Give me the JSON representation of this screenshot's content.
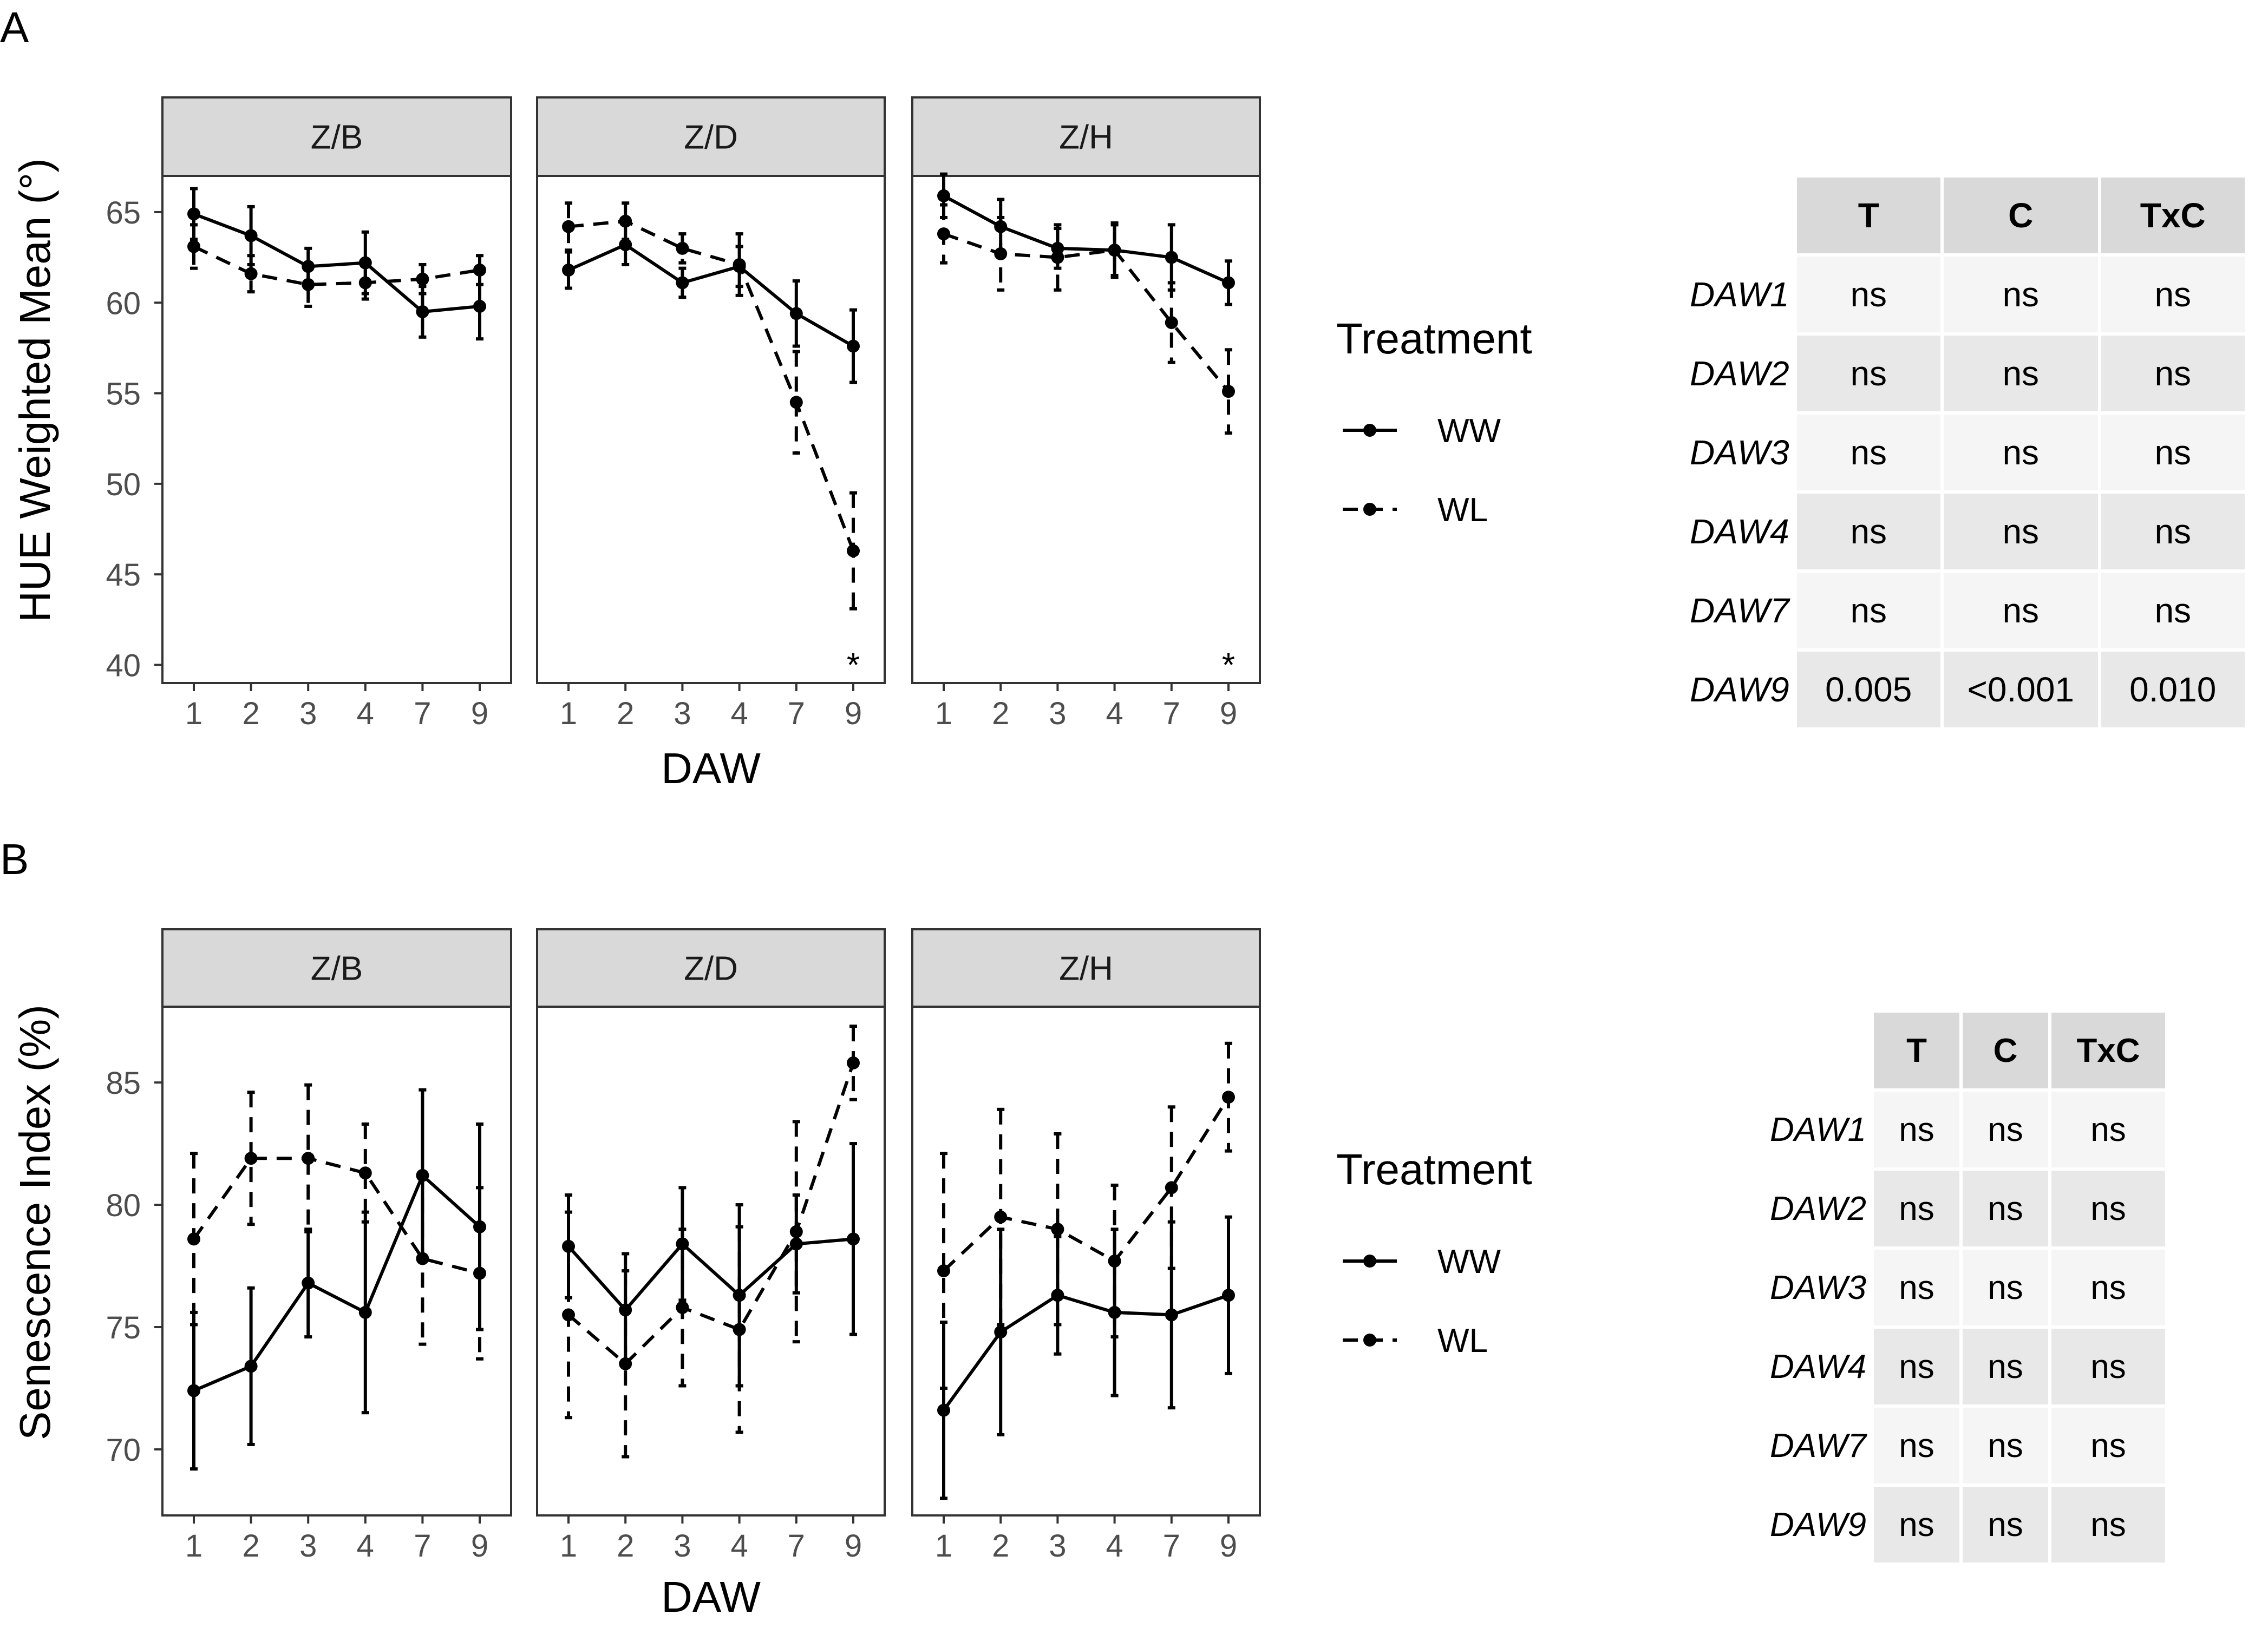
{
  "figure": {
    "panel_a_label": "A",
    "panel_b_label": "B"
  },
  "colors": {
    "strip": "#d9d9d9",
    "frame": "#333333",
    "tick": "#4d4d4d",
    "line": "#000000"
  },
  "chart_data": [
    {
      "type": "line",
      "id": "A",
      "ylabel": "HUE Weighted Mean (°)",
      "xlabel": "DAW",
      "categories": [
        "1",
        "2",
        "3",
        "4",
        "7",
        "9"
      ],
      "ylim": [
        39,
        67
      ],
      "yticks": [
        40,
        45,
        50,
        55,
        60,
        65
      ],
      "legend_title": "Treatment",
      "legend": [
        {
          "name": "WW",
          "dash": "solid"
        },
        {
          "name": "WL",
          "dash": "dashed"
        }
      ],
      "facets": [
        {
          "label": "Z/B",
          "series": [
            {
              "name": "WW",
              "values": [
                64.9,
                63.7,
                62.0,
                62.2,
                59.5,
                59.8
              ],
              "err": [
                1.4,
                1.6,
                1.0,
                1.7,
                1.4,
                1.8
              ]
            },
            {
              "name": "WL",
              "values": [
                63.1,
                61.6,
                61.0,
                61.1,
                61.3,
                61.8
              ],
              "err": [
                1.2,
                1.0,
                1.2,
                0.9,
                0.8,
                0.8
              ]
            }
          ],
          "annotations": []
        },
        {
          "label": "Z/D",
          "series": [
            {
              "name": "WW",
              "values": [
                61.8,
                63.2,
                61.1,
                62.0,
                59.4,
                57.6
              ],
              "err": [
                1.0,
                1.1,
                0.8,
                1.1,
                1.8,
                2.0
              ]
            },
            {
              "name": "WL",
              "values": [
                64.2,
                64.5,
                63.0,
                62.1,
                54.5,
                46.3
              ],
              "err": [
                1.3,
                1.0,
                0.8,
                1.7,
                2.8,
                3.2
              ]
            }
          ],
          "annotations": [
            {
              "x": "9",
              "text": "*"
            }
          ]
        },
        {
          "label": "Z/H",
          "series": [
            {
              "name": "WW",
              "values": [
                65.9,
                64.2,
                63.0,
                62.9,
                62.5,
                61.1
              ],
              "err": [
                1.2,
                1.5,
                1.1,
                1.5,
                1.8,
                1.2
              ]
            },
            {
              "name": "WL",
              "values": [
                63.8,
                62.7,
                62.5,
                62.9,
                58.9,
                55.1
              ],
              "err": [
                1.6,
                2.0,
                1.8,
                1.4,
                2.2,
                2.3
              ]
            }
          ],
          "annotations": [
            {
              "x": "9",
              "text": "*"
            }
          ]
        }
      ]
    },
    {
      "type": "line",
      "id": "B",
      "ylabel": "Senescence Index (%)",
      "xlabel": "DAW",
      "categories": [
        "1",
        "2",
        "3",
        "4",
        "7",
        "9"
      ],
      "ylim": [
        67.3,
        88.1
      ],
      "yticks": [
        70,
        75,
        80,
        85
      ],
      "legend_title": "Treatment",
      "legend": [
        {
          "name": "WW",
          "dash": "solid"
        },
        {
          "name": "WL",
          "dash": "dashed"
        }
      ],
      "facets": [
        {
          "label": "Z/B",
          "series": [
            {
              "name": "WW",
              "values": [
                72.4,
                73.4,
                76.8,
                75.6,
                81.2,
                79.1
              ],
              "err": [
                3.2,
                3.2,
                2.2,
                4.1,
                3.5,
                4.2
              ]
            },
            {
              "name": "WL",
              "values": [
                78.6,
                81.9,
                81.9,
                81.3,
                77.8,
                77.2
              ],
              "err": [
                3.5,
                2.7,
                3.0,
                2.0,
                3.5,
                3.5
              ]
            }
          ],
          "annotations": []
        },
        {
          "label": "Z/D",
          "series": [
            {
              "name": "WW",
              "values": [
                78.3,
                75.7,
                78.4,
                76.3,
                78.4,
                78.6
              ],
              "err": [
                2.1,
                2.3,
                2.3,
                3.7,
                2.0,
                3.9
              ]
            },
            {
              "name": "WL",
              "values": [
                75.5,
                73.5,
                75.8,
                74.9,
                78.9,
                85.8
              ],
              "err": [
                4.2,
                3.8,
                3.2,
                4.2,
                4.5,
                1.5
              ]
            }
          ],
          "annotations": []
        },
        {
          "label": "Z/H",
          "series": [
            {
              "name": "WW",
              "values": [
                71.6,
                74.8,
                76.3,
                75.6,
                75.5,
                76.3
              ],
              "err": [
                3.6,
                4.2,
                2.4,
                3.4,
                3.8,
                3.2
              ]
            },
            {
              "name": "WL",
              "values": [
                77.3,
                79.5,
                79.0,
                77.7,
                80.7,
                84.4
              ],
              "err": [
                4.8,
                4.4,
                3.9,
                3.1,
                3.3,
                2.2
              ]
            }
          ],
          "annotations": []
        }
      ]
    },
    {
      "type": "table",
      "id": "tableA",
      "columns": [
        "T",
        "C",
        "TxC"
      ],
      "rows": [
        {
          "label": "DAW1",
          "cells": [
            "ns",
            "ns",
            "ns"
          ]
        },
        {
          "label": "DAW2",
          "cells": [
            "ns",
            "ns",
            "ns"
          ]
        },
        {
          "label": "DAW3",
          "cells": [
            "ns",
            "ns",
            "ns"
          ]
        },
        {
          "label": "DAW4",
          "cells": [
            "ns",
            "ns",
            "ns"
          ]
        },
        {
          "label": "DAW7",
          "cells": [
            "ns",
            "ns",
            "ns"
          ]
        },
        {
          "label": "DAW9",
          "cells": [
            "0.005",
            "<0.001",
            "0.010"
          ]
        }
      ]
    },
    {
      "type": "table",
      "id": "tableB",
      "columns": [
        "T",
        "C",
        "TxC"
      ],
      "rows": [
        {
          "label": "DAW1",
          "cells": [
            "ns",
            "ns",
            "ns"
          ]
        },
        {
          "label": "DAW2",
          "cells": [
            "ns",
            "ns",
            "ns"
          ]
        },
        {
          "label": "DAW3",
          "cells": [
            "ns",
            "ns",
            "ns"
          ]
        },
        {
          "label": "DAW4",
          "cells": [
            "ns",
            "ns",
            "ns"
          ]
        },
        {
          "label": "DAW7",
          "cells": [
            "ns",
            "ns",
            "ns"
          ]
        },
        {
          "label": "DAW9",
          "cells": [
            "ns",
            "ns",
            "ns"
          ]
        }
      ]
    }
  ]
}
